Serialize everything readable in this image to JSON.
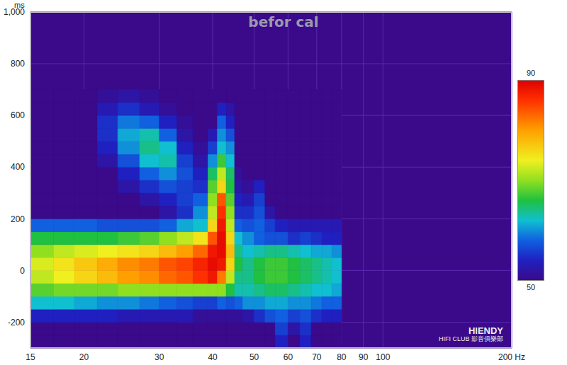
{
  "chart_data": {
    "type": "heatmap",
    "title": "befor cal",
    "y_label": "ms",
    "log": "x",
    "grid": true,
    "xlim": [
      15,
      200
    ],
    "xticks": [
      15,
      20,
      30,
      40,
      50,
      60,
      70,
      80,
      90,
      100,
      {
        "value": 200,
        "label": "200 Hz"
      }
    ],
    "ylim": [
      -300,
      1000
    ],
    "yticks": [
      -200,
      0,
      200,
      400,
      600,
      800,
      {
        "value": 1000,
        "label": "1,000"
      }
    ],
    "x_edges": [
      15,
      17,
      19,
      21.5,
      24,
      27,
      30,
      33,
      36,
      39,
      41,
      43,
      45,
      47,
      50,
      53,
      56,
      60,
      64,
      68,
      72,
      76,
      80
    ],
    "y_edges": [
      -300,
      -250,
      -200,
      -150,
      -100,
      -50,
      0,
      50,
      100,
      150,
      200,
      250,
      300,
      350,
      400,
      450,
      500,
      550,
      600,
      650,
      700
    ],
    "cells": [
      [
        50,
        50,
        50,
        50,
        50,
        50,
        50,
        50,
        50,
        50,
        50,
        50,
        50,
        50,
        50,
        50,
        54,
        50,
        54,
        50,
        50,
        50
      ],
      [
        50,
        50,
        50,
        50,
        50,
        50,
        50,
        50,
        50,
        50,
        50,
        50,
        50,
        50,
        50,
        50,
        56,
        52,
        55,
        50,
        50,
        50
      ],
      [
        54,
        54,
        54,
        54,
        53,
        53,
        53,
        53,
        51,
        51,
        51,
        51,
        51,
        52,
        55,
        57,
        58,
        56,
        57,
        55,
        54,
        54
      ],
      [
        62,
        62,
        61,
        60,
        60,
        59,
        58,
        57,
        56,
        56,
        58,
        57,
        58,
        60,
        60,
        61,
        61,
        60,
        60,
        59,
        58,
        58
      ],
      [
        68,
        69,
        69,
        69,
        70,
        70,
        70,
        70,
        70,
        70,
        70,
        66,
        63,
        63,
        64,
        65,
        65,
        64,
        63,
        62,
        62,
        61
      ],
      [
        72,
        74,
        76,
        78,
        80,
        81,
        83,
        84,
        86,
        88,
        82,
        72,
        64,
        64,
        66,
        67,
        67,
        66,
        65,
        64,
        63,
        62
      ],
      [
        73,
        75,
        77,
        79,
        81,
        82,
        84,
        85,
        87,
        89,
        88,
        76,
        66,
        64,
        66,
        67,
        67,
        66,
        65,
        64,
        63,
        62
      ],
      [
        70,
        72,
        73,
        74,
        75,
        76,
        78,
        80,
        83,
        88,
        89,
        78,
        64,
        62,
        63,
        64,
        64,
        63,
        62,
        61,
        61,
        60
      ],
      [
        66,
        66,
        66,
        66,
        67,
        68,
        70,
        72,
        75,
        84,
        89,
        76,
        62,
        60,
        58,
        57,
        57,
        55,
        56,
        55,
        54,
        54
      ],
      [
        58,
        58,
        58,
        57,
        57,
        57,
        58,
        61,
        62,
        76,
        88,
        72,
        58,
        57,
        58,
        56,
        54,
        53,
        53,
        53,
        53,
        53
      ],
      [
        50,
        50,
        50,
        50,
        50,
        50,
        52,
        55,
        60,
        72,
        86,
        70,
        55,
        55,
        57,
        52,
        50,
        50,
        50,
        50,
        50,
        50
      ],
      [
        50,
        50,
        50,
        50,
        50,
        52,
        54,
        56,
        58,
        70,
        84,
        68,
        54,
        53,
        56,
        50,
        50,
        50,
        50,
        50,
        50,
        50
      ],
      [
        50,
        50,
        50,
        50,
        52,
        55,
        57,
        56,
        55,
        68,
        76,
        66,
        52,
        51,
        54,
        50,
        50,
        50,
        50,
        50,
        50,
        50
      ],
      [
        50,
        50,
        50,
        50,
        54,
        58,
        60,
        57,
        54,
        65,
        72,
        65,
        51,
        50,
        50,
        50,
        50,
        50,
        50,
        50,
        50,
        50
      ],
      [
        50,
        50,
        50,
        52,
        57,
        62,
        63,
        56,
        52,
        60,
        67,
        62,
        50,
        50,
        50,
        50,
        50,
        50,
        50,
        50,
        50,
        50
      ],
      [
        50,
        50,
        50,
        54,
        60,
        64,
        62,
        54,
        51,
        56,
        62,
        60,
        50,
        50,
        50,
        50,
        50,
        50,
        50,
        50,
        50,
        50
      ],
      [
        50,
        50,
        50,
        55,
        61,
        63,
        58,
        52,
        50,
        53,
        60,
        57,
        50,
        50,
        50,
        50,
        50,
        50,
        50,
        50,
        50,
        50
      ],
      [
        50,
        50,
        50,
        55,
        59,
        58,
        54,
        51,
        50,
        50,
        58,
        54,
        50,
        50,
        50,
        50,
        50,
        50,
        50,
        50,
        50,
        50
      ],
      [
        50,
        50,
        50,
        53,
        55,
        53,
        51,
        50,
        50,
        50,
        54,
        52,
        50,
        50,
        50,
        50,
        50,
        50,
        50,
        50,
        50,
        50
      ],
      [
        50,
        50,
        50,
        51,
        52,
        51,
        50,
        50,
        50,
        50,
        50,
        50,
        50,
        50,
        50,
        50,
        50,
        50,
        50,
        50,
        50,
        50
      ]
    ],
    "colorbar": {
      "range": [
        50,
        90
      ],
      "ticks": [
        50,
        90
      ]
    }
  },
  "watermark": [
    "HIENDY",
    "HIFI CLUB 影音俱樂部"
  ]
}
